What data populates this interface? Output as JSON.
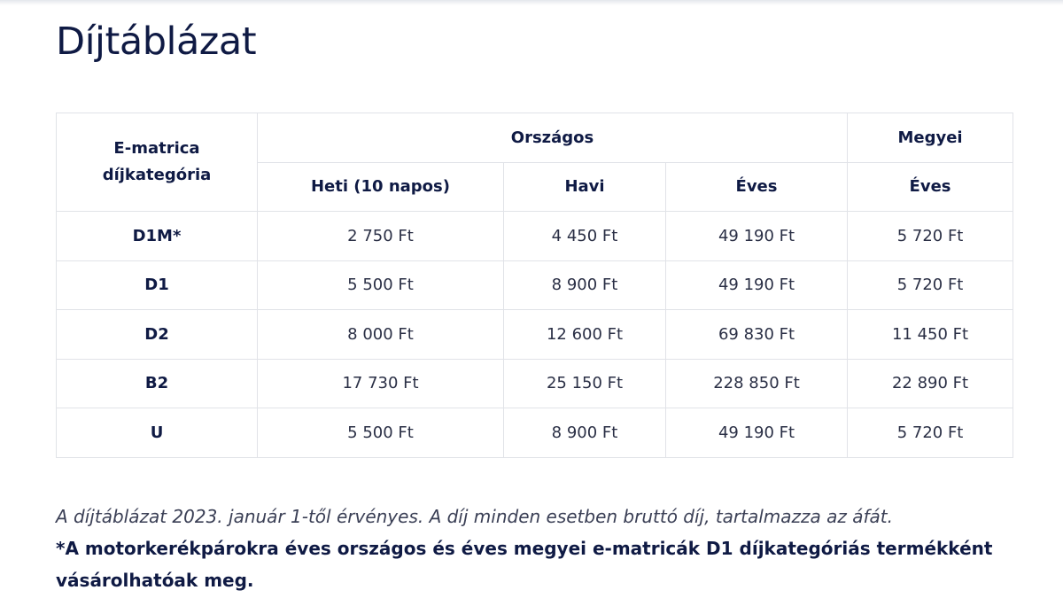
{
  "title": "Díjtáblázat",
  "table": {
    "category_header": "E-matrica díjkategória",
    "group_headers": [
      "Országos",
      "Megyei"
    ],
    "sub_headers": [
      "Heti (10 napos)",
      "Havi",
      "Éves",
      "Éves"
    ],
    "rows": [
      {
        "cat": "D1M*",
        "values": [
          "2 750 Ft",
          "4 450 Ft",
          "49 190 Ft",
          "5 720 Ft"
        ]
      },
      {
        "cat": "D1",
        "values": [
          "5 500 Ft",
          "8 900 Ft",
          "49 190 Ft",
          "5 720 Ft"
        ]
      },
      {
        "cat": "D2",
        "values": [
          "8 000 Ft",
          "12 600 Ft",
          "69 830 Ft",
          "11 450 Ft"
        ]
      },
      {
        "cat": "B2",
        "values": [
          "17 730 Ft",
          "25 150 Ft",
          "228 850 Ft",
          "22 890 Ft"
        ]
      },
      {
        "cat": "U",
        "values": [
          "5 500 Ft",
          "8 900 Ft",
          "49 190 Ft",
          "5 720 Ft"
        ]
      }
    ]
  },
  "notes": {
    "validity": "A díjtáblázat 2023. január 1-től érvényes. A díj minden esetben bruttó díj, tartalmazza az áfát.",
    "footnote": "*A motorkerékpárokra éves országos és éves megyei e-matricák D1 díjkategóriás termékként vásárolhatóak meg."
  },
  "colors": {
    "text": "#0f1a44",
    "border": "#e1e3e8"
  }
}
